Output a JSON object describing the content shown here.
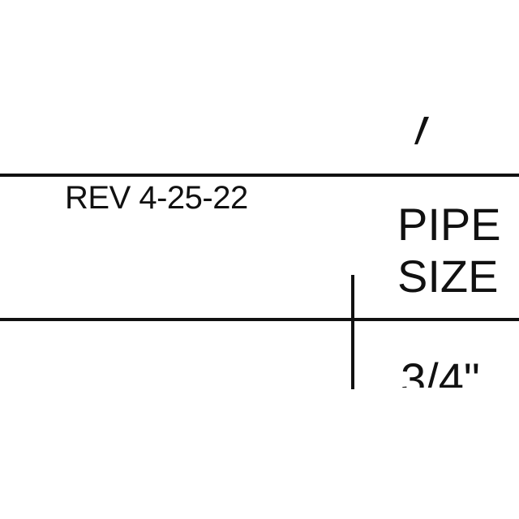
{
  "document": {
    "revision": "REV 4-25-22",
    "mark_glyph": "’",
    "column_header": {
      "line1": "PIPE",
      "line2": "SIZE"
    },
    "first_value": "3/4\""
  },
  "colors": {
    "ink": "#111111",
    "paper": "#ffffff"
  }
}
